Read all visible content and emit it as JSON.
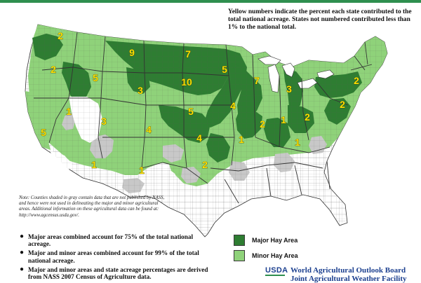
{
  "header_note": "Yellow numbers indicate the percent each state contributed to the total national acreage.  States not numbered contributed less than 1% to the national total.",
  "colors": {
    "major": "#2e7d32",
    "minor": "#8fd27a",
    "nodata": "#c8c8c8",
    "none": "#ffffff",
    "numbers": "#ffe100",
    "header_bar": "#2f8f4f"
  },
  "state_labels": [
    {
      "state": "WA",
      "value": "2"
    },
    {
      "state": "OR",
      "value": "2"
    },
    {
      "state": "ID",
      "value": "5"
    },
    {
      "state": "MT",
      "value": "9"
    },
    {
      "state": "ND",
      "value": "7"
    },
    {
      "state": "MN",
      "value": "5"
    },
    {
      "state": "WI",
      "value": "7"
    },
    {
      "state": "MI",
      "value": "3"
    },
    {
      "state": "NY",
      "value": "2"
    },
    {
      "state": "WY",
      "value": "3"
    },
    {
      "state": "SD",
      "value": "10"
    },
    {
      "state": "NV",
      "value": "1"
    },
    {
      "state": "UT",
      "value": "3"
    },
    {
      "state": "CA",
      "value": "5"
    },
    {
      "state": "CO",
      "value": "4"
    },
    {
      "state": "NE",
      "value": "5"
    },
    {
      "state": "IA",
      "value": "4"
    },
    {
      "state": "KS",
      "value": "4"
    },
    {
      "state": "IL",
      "value": "2"
    },
    {
      "state": "IN",
      "value": "1"
    },
    {
      "state": "OH",
      "value": "2"
    },
    {
      "state": "PA",
      "value": "2"
    },
    {
      "state": "MO",
      "value": "1"
    },
    {
      "state": "KY",
      "value": "1"
    },
    {
      "state": "AZ",
      "value": "1"
    },
    {
      "state": "NM",
      "value": "1"
    },
    {
      "state": "OK",
      "value": "2"
    }
  ],
  "note": "Note:  Counties shaded in gray contain data that are not published by NASS, and hence were not used in delineating the major and minor agricultural areas. Additional information on these agricultural data can be found at:  http://www.agcensus.usda.gov/.",
  "bullets": [
    "Major areas combined account for 75% of the total national acreage.",
    "Major and minor areas combined account for 99% of the total national acreage.",
    "Major and minor areas and state acreage percentages are derived from NASS 2007 Census of Agriculture data."
  ],
  "legend": [
    {
      "label": "Major Hay Area",
      "color": "#2e7d32"
    },
    {
      "label": "Minor Hay Area",
      "color": "#8fd27a"
    }
  ],
  "footer": {
    "logo": "USDA",
    "org_line1": "World Agricultural Outlook Board",
    "org_line2": "Joint Agricultural Weather Facility"
  }
}
